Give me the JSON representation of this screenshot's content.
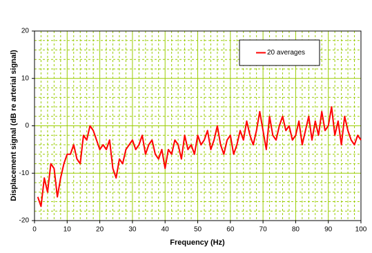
{
  "chart_data": {
    "type": "line",
    "xlabel": "Frequency (Hz)",
    "ylabel": "Displacement signal (dB re arterial signal)",
    "x": [
      1,
      2,
      3,
      4,
      5,
      6,
      7,
      8,
      9,
      10,
      11,
      12,
      13,
      14,
      15,
      16,
      17,
      18,
      19,
      20,
      21,
      22,
      23,
      24,
      25,
      26,
      27,
      28,
      29,
      30,
      31,
      32,
      33,
      34,
      35,
      36,
      37,
      38,
      39,
      40,
      41,
      42,
      43,
      44,
      45,
      46,
      47,
      48,
      49,
      50,
      51,
      52,
      53,
      54,
      55,
      56,
      57,
      58,
      59,
      60,
      61,
      62,
      63,
      64,
      65,
      66,
      67,
      68,
      69,
      70,
      71,
      72,
      73,
      74,
      75,
      76,
      77,
      78,
      79,
      80,
      81,
      82,
      83,
      84,
      85,
      86,
      87,
      88,
      89,
      90,
      91,
      92,
      93,
      94,
      95,
      96,
      97,
      98,
      99,
      100
    ],
    "series": [
      {
        "name": "20 averages",
        "color": "#ff0000",
        "values": [
          -15,
          -17,
          -11,
          -14,
          -8,
          -9,
          -15,
          -11,
          -8,
          -6,
          -6,
          -4,
          -7,
          -8,
          -2,
          -3,
          0,
          -1,
          -3,
          -5,
          -4,
          -5,
          -3,
          -9,
          -11,
          -7,
          -8,
          -5,
          -4,
          -3,
          -5,
          -4,
          -2,
          -6,
          -4,
          -3,
          -6,
          -7,
          -5,
          -9,
          -5,
          -6,
          -3,
          -4,
          -7,
          -2,
          -5,
          -4,
          -6,
          -2,
          -4,
          -3,
          -1,
          -5,
          -3,
          0,
          -4,
          -6,
          -3,
          -2,
          -6,
          -4,
          -1,
          -3,
          1,
          -2,
          -4,
          -1,
          3,
          -1,
          -5,
          2,
          -2,
          -3,
          0,
          2,
          -1,
          0,
          -3,
          -2,
          1,
          -4,
          -1,
          2,
          -3,
          1,
          -2,
          3,
          -1,
          0,
          4,
          -2,
          1,
          -4,
          2,
          -1,
          -3,
          -4,
          -2,
          -3
        ]
      }
    ],
    "xlim": [
      0,
      100
    ],
    "xticks": [
      0,
      10,
      20,
      30,
      40,
      50,
      60,
      70,
      80,
      90,
      100
    ],
    "ylim": [
      -20,
      20
    ],
    "yticks": [
      -20,
      -10,
      0,
      10,
      20
    ],
    "xminorticks": [
      2,
      4,
      6,
      8,
      12,
      14,
      16,
      18,
      22,
      24,
      26,
      28,
      32,
      34,
      36,
      38,
      42,
      44,
      46,
      48,
      52,
      54,
      56,
      58,
      62,
      64,
      66,
      68,
      72,
      74,
      76,
      78,
      82,
      84,
      86,
      88,
      92,
      94,
      96,
      98
    ],
    "yminorticks": [
      -18,
      -16,
      -14,
      -12,
      -8,
      -6,
      -4,
      -2,
      2,
      4,
      6,
      8,
      12,
      14,
      16,
      18
    ],
    "grid": true,
    "grid_color": "#99cc00",
    "legend": "upper right"
  }
}
